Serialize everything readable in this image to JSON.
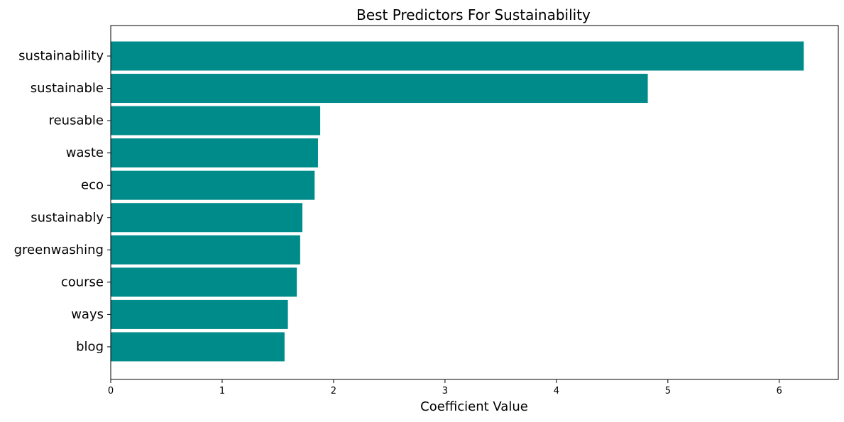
{
  "chart_data": {
    "type": "bar",
    "orientation": "horizontal",
    "title": "Best Predictors For Sustainability",
    "xlabel": "Coefficient Value",
    "ylabel": "",
    "categories": [
      "sustainability",
      "sustainable",
      "reusable",
      "waste",
      "eco",
      "sustainably",
      "greenwashing",
      "course",
      "ways",
      "blog"
    ],
    "values": [
      6.22,
      4.82,
      1.88,
      1.86,
      1.83,
      1.72,
      1.7,
      1.67,
      1.59,
      1.56
    ],
    "xlim": [
      0,
      6.53
    ],
    "xticks": [
      0,
      1,
      2,
      3,
      4,
      5,
      6
    ],
    "grid": false,
    "bar_color": "#008b8b"
  }
}
